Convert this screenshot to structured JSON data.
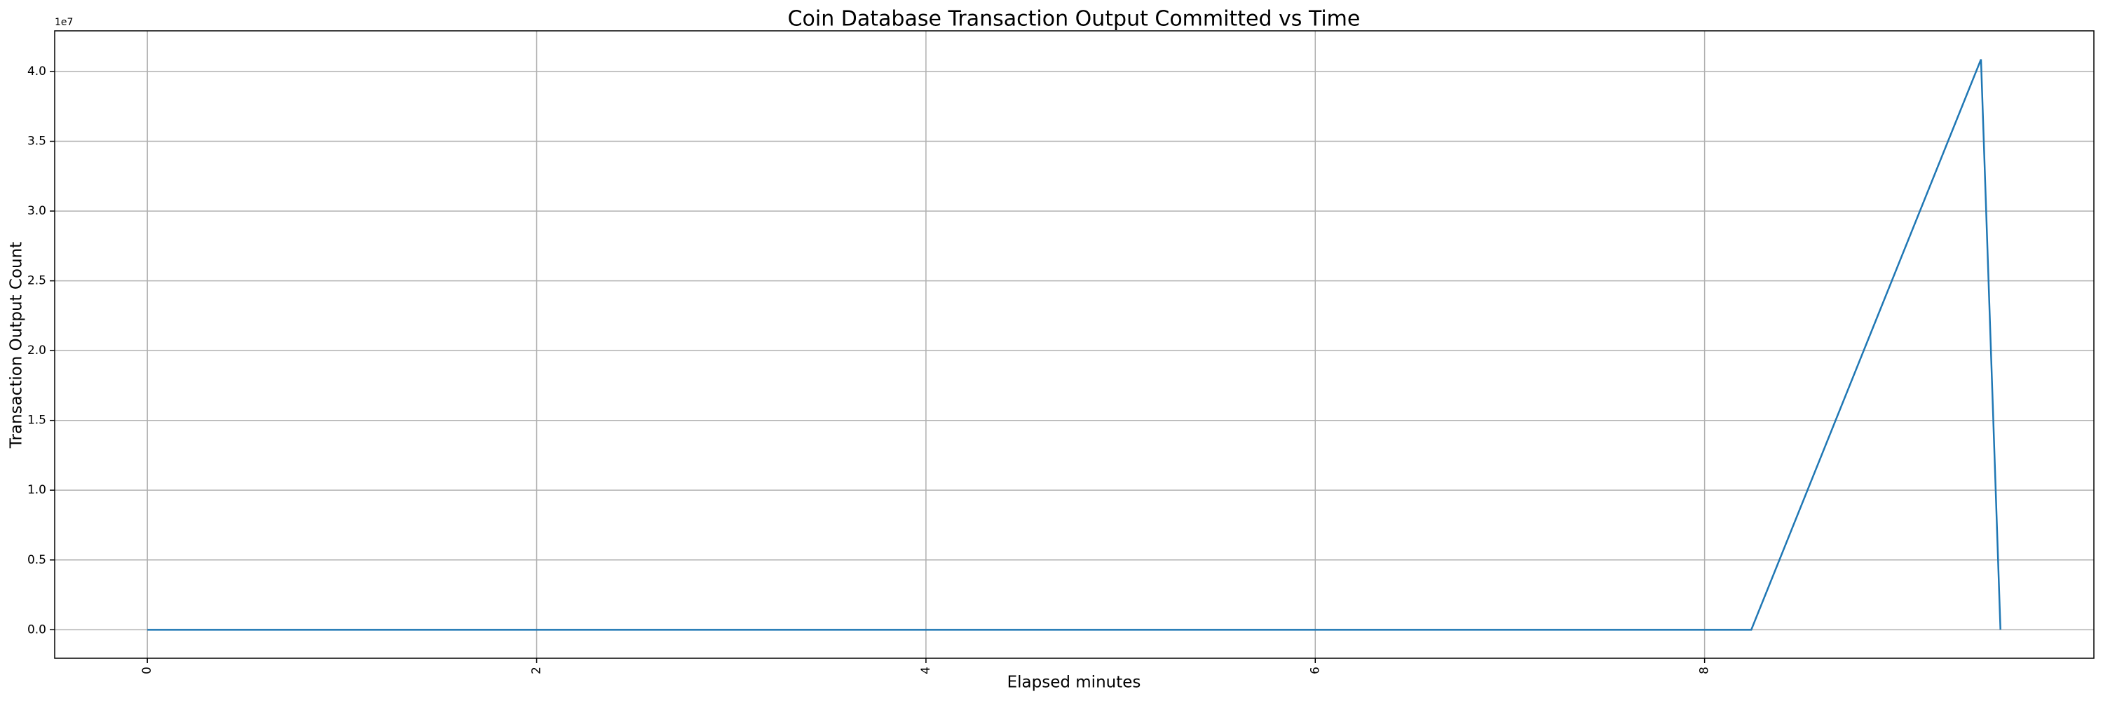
{
  "chart_data": {
    "type": "line",
    "title": "Coin Database Transaction Output Committed vs Time",
    "x_label": "Elapsed minutes",
    "y_label": "Transaction Output Count",
    "y_offset_label": "1e7",
    "x": [
      0,
      8.24,
      9.42,
      9.52
    ],
    "series": [
      {
        "name": "Transaction Output Count",
        "color": "#1f77b4",
        "values": [
          0,
          0,
          40870000,
          0
        ]
      }
    ],
    "xlim": [
      -0.476,
      10.0
    ],
    "xticks": [
      0,
      2,
      4,
      6,
      8
    ],
    "ylim": [
      -2043500,
      42913500
    ],
    "yticks": [
      {
        "value": 0,
        "label": "0.0"
      },
      {
        "value": 5000000,
        "label": "0.5"
      },
      {
        "value": 10000000,
        "label": "1.0"
      },
      {
        "value": 15000000,
        "label": "1.5"
      },
      {
        "value": 20000000,
        "label": "2.0"
      },
      {
        "value": 25000000,
        "label": "2.5"
      },
      {
        "value": 30000000,
        "label": "3.0"
      },
      {
        "value": 35000000,
        "label": "3.5"
      },
      {
        "value": 40000000,
        "label": "4.0"
      }
    ],
    "grid": true,
    "legend": false
  }
}
